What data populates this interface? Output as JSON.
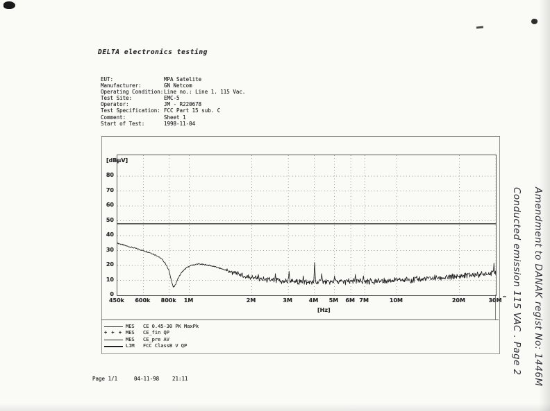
{
  "document": {
    "title": "DELTA electronics testing",
    "header_fields": [
      {
        "label": "EUT:",
        "value": "MPA Satelite"
      },
      {
        "label": "Manufacturer:",
        "value": "GN Netcom"
      },
      {
        "label": "Operating Condition:",
        "value": "Line no.: Line 1. 115 Vac."
      },
      {
        "label": "Test Site:",
        "value": "EMC-5"
      },
      {
        "label": "Operator:",
        "value": "JM - R220678"
      },
      {
        "label": "Test Specification:",
        "value": "FCC Part 15 sub. C"
      },
      {
        "label": "Comment:",
        "value": "Sheet 1"
      },
      {
        "label": "Start of Test:",
        "value": "1998-11-04"
      }
    ],
    "footer": {
      "page_label": "Page 1/1",
      "date": "04-11-98",
      "time": "21:11"
    },
    "handwriting": {
      "line1": "Amendment to DANAK regist No: 1446M",
      "line2": "Conducted emission 115 VAC . Page 2"
    }
  },
  "chart_data": {
    "type": "line",
    "title": "",
    "xlabel": "[Hz]",
    "ylabel": "[dBµV]",
    "x_scale": "log",
    "xlim_mhz": [
      0.45,
      30
    ],
    "ylim": [
      0,
      94
    ],
    "grid": "dotted",
    "x_ticks": [
      {
        "mhz": 0.45,
        "label": "450k"
      },
      {
        "mhz": 0.6,
        "label": "600k"
      },
      {
        "mhz": 0.8,
        "label": "800k"
      },
      {
        "mhz": 1,
        "label": "1M"
      },
      {
        "mhz": 2,
        "label": "2M"
      },
      {
        "mhz": 3,
        "label": "3M"
      },
      {
        "mhz": 4,
        "label": "4M"
      },
      {
        "mhz": 5,
        "label": "5M"
      },
      {
        "mhz": 6,
        "label": "6M"
      },
      {
        "mhz": 7,
        "label": "7M"
      },
      {
        "mhz": 10,
        "label": "10M"
      },
      {
        "mhz": 20,
        "label": "20M"
      },
      {
        "mhz": 30,
        "label": "30M"
      }
    ],
    "y_ticks": [
      80,
      70,
      60,
      50,
      40,
      30,
      20,
      10,
      0
    ],
    "series": [
      {
        "name": "MES CE 0.45-30 PK MaxPk",
        "style": "noisy_trace",
        "envelope_mhz_dbuv": [
          [
            0.45,
            35
          ],
          [
            0.5,
            33
          ],
          [
            0.55,
            31.5
          ],
          [
            0.6,
            30
          ],
          [
            0.65,
            28.5
          ],
          [
            0.7,
            26.5
          ],
          [
            0.74,
            24
          ],
          [
            0.77,
            21
          ],
          [
            0.8,
            16
          ],
          [
            0.82,
            10
          ],
          [
            0.835,
            5.5
          ],
          [
            0.85,
            6
          ],
          [
            0.88,
            11
          ],
          [
            0.92,
            15.5
          ],
          [
            0.97,
            18.5
          ],
          [
            1.02,
            20
          ],
          [
            1.1,
            21
          ],
          [
            1.2,
            20.5
          ],
          [
            1.3,
            19.5
          ],
          [
            1.45,
            17.5
          ],
          [
            1.6,
            15.5
          ],
          [
            1.8,
            13.5
          ],
          [
            2,
            12
          ],
          [
            2.3,
            10.5
          ],
          [
            2.7,
            9.5
          ],
          [
            3.2,
            9
          ],
          [
            4,
            8.8
          ],
          [
            5,
            9
          ],
          [
            6,
            9.2
          ],
          [
            7,
            9.3
          ],
          [
            8.5,
            9.6
          ],
          [
            10,
            10
          ],
          [
            12,
            10.5
          ],
          [
            15,
            11.5
          ],
          [
            18,
            12.2
          ],
          [
            22,
            13.2
          ],
          [
            26,
            14.2
          ],
          [
            30,
            15.5
          ]
        ],
        "spikes_mhz_dbuv": [
          [
            2.15,
            14
          ],
          [
            2.6,
            14.5
          ],
          [
            3.02,
            16
          ],
          [
            3.55,
            13
          ],
          [
            4.02,
            22
          ],
          [
            4.35,
            14.5
          ],
          [
            5,
            13
          ],
          [
            6.3,
            14
          ],
          [
            6.9,
            13
          ],
          [
            12.5,
            13
          ],
          [
            29.3,
            21.5
          ]
        ]
      },
      {
        "name": "LIM FCC ClassB V QP",
        "style": "limit_line",
        "value_dbuv": 48
      }
    ],
    "legend": [
      {
        "sample": "line",
        "code": "MES",
        "label": "CE 0.45-30 PK MaxPk"
      },
      {
        "sample": "plus",
        "code": "MES",
        "label": "CE_fin QP"
      },
      {
        "sample": "line",
        "code": "MES",
        "label": "CE_pre AV"
      },
      {
        "sample": "line",
        "code": "LIM",
        "label": "FCC ClassB V QP"
      }
    ]
  }
}
